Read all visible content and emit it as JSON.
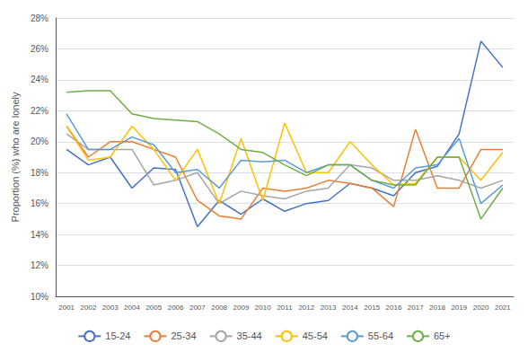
{
  "chart_data": {
    "type": "line",
    "y_label": "Proportion (%) who are lonely",
    "categories": [
      "2001",
      "2002",
      "2003",
      "2004",
      "2005",
      "2006",
      "2007",
      "2008",
      "2009",
      "2010",
      "2011",
      "2012",
      "2013",
      "2014",
      "2015",
      "2016",
      "2017",
      "2018",
      "2019",
      "2020",
      "2021"
    ],
    "series": [
      {
        "name": "15-24",
        "color": "#4472c4",
        "values": [
          19.5,
          18.5,
          19.0,
          17.0,
          18.3,
          18.2,
          14.5,
          16.2,
          15.3,
          16.3,
          15.5,
          16.0,
          16.2,
          17.3,
          17.0,
          16.5,
          18.0,
          18.4,
          20.5,
          26.5,
          24.8
        ]
      },
      {
        "name": "25-34",
        "color": "#ed7d31",
        "values": [
          21.0,
          19.0,
          20.0,
          20.0,
          19.5,
          19.0,
          16.2,
          15.2,
          15.0,
          17.0,
          16.8,
          17.0,
          17.5,
          17.3,
          17.0,
          15.8,
          20.8,
          17.0,
          17.0,
          19.5,
          19.5
        ]
      },
      {
        "name": "35-44",
        "color": "#a5a5a5",
        "values": [
          20.5,
          19.5,
          19.5,
          19.5,
          17.2,
          17.5,
          18.0,
          16.0,
          16.8,
          16.5,
          16.3,
          16.8,
          17.0,
          18.5,
          18.3,
          17.5,
          17.5,
          17.8,
          17.5,
          17.0,
          17.5
        ]
      },
      {
        "name": "45-54",
        "color": "#ffc000",
        "values": [
          21.0,
          18.8,
          19.0,
          21.0,
          19.5,
          17.5,
          19.5,
          16.0,
          20.2,
          16.2,
          21.2,
          18.0,
          18.0,
          20.0,
          18.5,
          17.2,
          17.3,
          19.0,
          19.0,
          17.5,
          19.3
        ]
      },
      {
        "name": "55-64",
        "color": "#5b9bd5",
        "values": [
          21.8,
          19.5,
          19.5,
          20.3,
          19.8,
          18.0,
          18.2,
          17.0,
          18.8,
          18.7,
          18.8,
          18.0,
          18.5,
          18.5,
          17.5,
          17.0,
          18.3,
          18.5,
          20.2,
          16.0,
          17.2
        ]
      },
      {
        "name": "65+",
        "color": "#70ad47",
        "values": [
          23.2,
          23.3,
          23.3,
          21.8,
          21.5,
          21.4,
          21.3,
          20.5,
          19.5,
          19.3,
          18.5,
          17.8,
          18.5,
          18.5,
          17.5,
          17.2,
          17.2,
          19.0,
          19.0,
          15.0,
          17.0
        ]
      }
    ],
    "ylim": [
      10,
      28
    ],
    "yticks": [
      {
        "value": 10,
        "label": "10%"
      },
      {
        "value": 12,
        "label": "12%"
      },
      {
        "value": 14,
        "label": "14%"
      },
      {
        "value": 16,
        "label": "16%"
      },
      {
        "value": 18,
        "label": "18%"
      },
      {
        "value": 20,
        "label": "20%"
      },
      {
        "value": 22,
        "label": "22%"
      },
      {
        "value": 24,
        "label": "24%"
      },
      {
        "value": 26,
        "label": "26%"
      },
      {
        "value": 28,
        "label": "28%"
      }
    ],
    "grid": true,
    "legend": "bottom"
  }
}
